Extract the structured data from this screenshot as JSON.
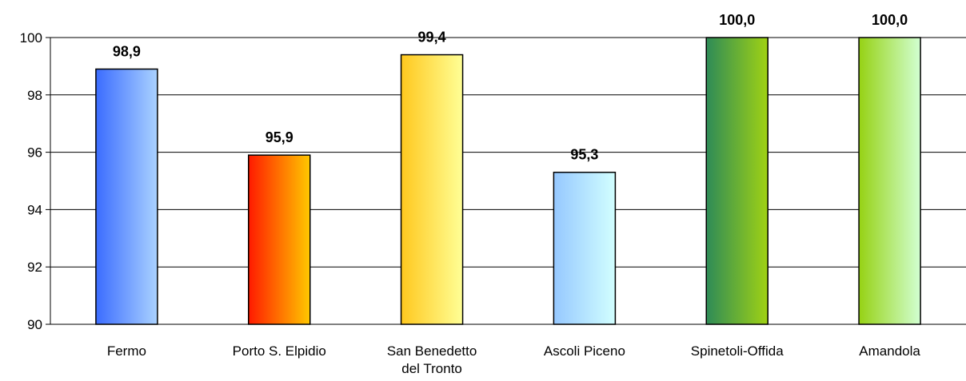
{
  "chart_data": {
    "type": "bar",
    "title": "",
    "xlabel": "",
    "ylabel": "",
    "ylim": [
      90,
      100
    ],
    "yticks": [
      90,
      92,
      94,
      96,
      98,
      100
    ],
    "ytick_labels": [
      "90",
      "92",
      "94",
      "96",
      "98",
      "100"
    ],
    "grid": true,
    "categories": [
      [
        "Fermo"
      ],
      [
        "Porto S. Elpidio"
      ],
      [
        "San Benedetto",
        "del Tronto"
      ],
      [
        "Ascoli Piceno"
      ],
      [
        "Spinetoli-Offida"
      ],
      [
        "Amandola"
      ]
    ],
    "values": [
      98.9,
      95.9,
      99.4,
      95.3,
      100.0,
      100.0
    ],
    "data_labels": [
      "98,9",
      "95,9",
      "99,4",
      "95,3",
      "100,0",
      "100,0"
    ],
    "bar_gradients": [
      [
        "#3b6cff",
        "#aad2ff"
      ],
      [
        "#ff1a00",
        "#ffc800"
      ],
      [
        "#ffc81e",
        "#ffff96"
      ],
      [
        "#96c8ff",
        "#d2ffff"
      ],
      [
        "#2e8b57",
        "#a0d214"
      ],
      [
        "#96d214",
        "#d2ffd2"
      ]
    ]
  }
}
